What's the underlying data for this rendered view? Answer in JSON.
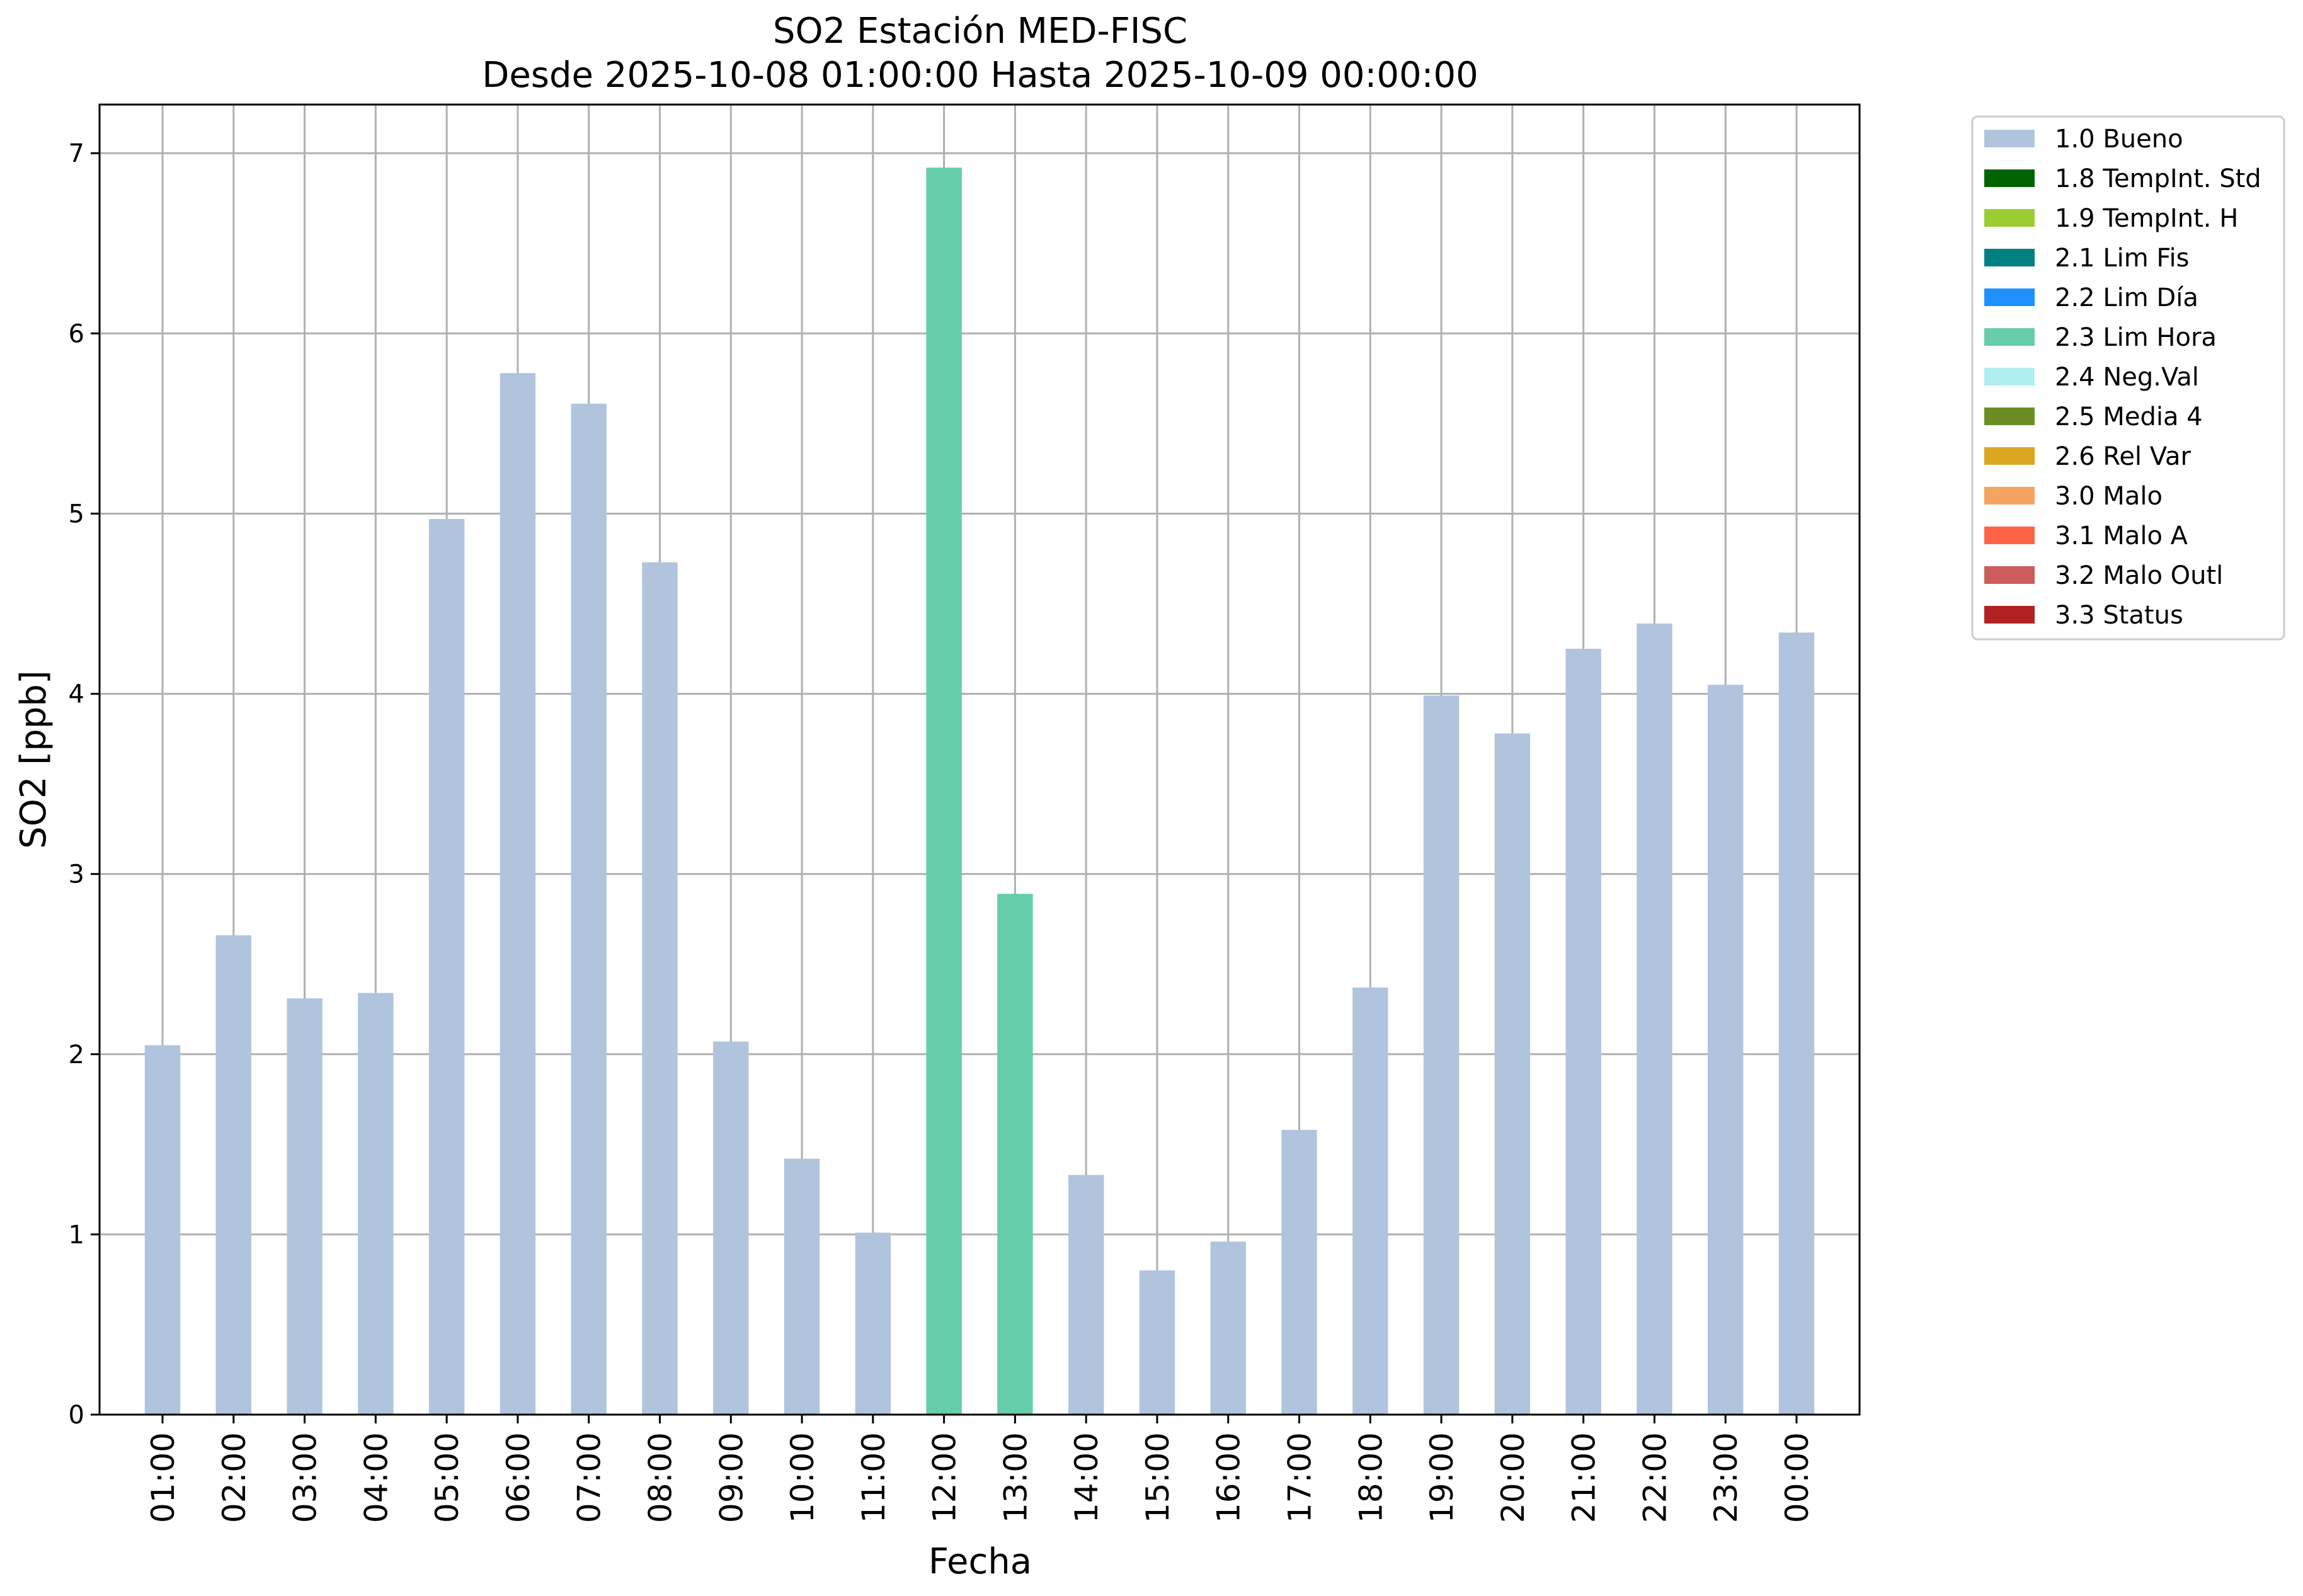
{
  "chart_data": {
    "type": "bar",
    "title": "SO2 Estación MED-FISC",
    "subtitle": "Desde 2025-10-08 01:00:00 Hasta 2025-10-09 00:00:00",
    "xlabel": "Fecha",
    "ylabel": "SO2 [ppb]",
    "ylim": [
      0,
      7.27
    ],
    "yticks": [
      "0",
      "1",
      "2",
      "3",
      "4",
      "5",
      "6",
      "7"
    ],
    "grid": true,
    "legend_position": "outside-top-right",
    "categories": [
      "01:00",
      "02:00",
      "03:00",
      "04:00",
      "05:00",
      "06:00",
      "07:00",
      "08:00",
      "09:00",
      "10:00",
      "11:00",
      "12:00",
      "13:00",
      "14:00",
      "15:00",
      "16:00",
      "17:00",
      "18:00",
      "19:00",
      "20:00",
      "21:00",
      "22:00",
      "23:00",
      "00:00"
    ],
    "values": [
      2.05,
      2.66,
      2.31,
      2.34,
      4.97,
      5.78,
      5.61,
      4.73,
      2.07,
      1.42,
      1.01,
      6.92,
      2.89,
      1.33,
      0.8,
      0.96,
      1.58,
      2.37,
      3.99,
      3.78,
      4.25,
      4.39,
      4.05,
      4.34
    ],
    "flags": [
      "1.0 Bueno",
      "1.0 Bueno",
      "1.0 Bueno",
      "1.0 Bueno",
      "1.0 Bueno",
      "1.0 Bueno",
      "1.0 Bueno",
      "1.0 Bueno",
      "1.0 Bueno",
      "1.0 Bueno",
      "1.0 Bueno",
      "2.3 Lim Hora",
      "2.3 Lim Hora",
      "1.0 Bueno",
      "1.0 Bueno",
      "1.0 Bueno",
      "1.0 Bueno",
      "1.0 Bueno",
      "1.0 Bueno",
      "1.0 Bueno",
      "1.0 Bueno",
      "1.0 Bueno",
      "1.0 Bueno",
      "1.0 Bueno"
    ],
    "legend": [
      {
        "label": "1.0 Bueno",
        "color": "#b0c4de"
      },
      {
        "label": "1.8 TempInt. Std",
        "color": "#006400"
      },
      {
        "label": "1.9 TempInt. H",
        "color": "#9acd32"
      },
      {
        "label": "2.1 Lim Fis",
        "color": "#008080"
      },
      {
        "label": "2.2 Lim Día",
        "color": "#1e90ff"
      },
      {
        "label": "2.3 Lim Hora",
        "color": "#66cdaa"
      },
      {
        "label": "2.4 Neg.Val",
        "color": "#afeeee"
      },
      {
        "label": "2.5 Media 4",
        "color": "#6b8e23"
      },
      {
        "label": "2.6 Rel Var",
        "color": "#daa520"
      },
      {
        "label": "3.0 Malo",
        "color": "#f4a460"
      },
      {
        "label": "3.1 Malo A",
        "color": "#ff6347"
      },
      {
        "label": "3.2 Malo Outl",
        "color": "#cd5c5c"
      },
      {
        "label": "3.3 Status",
        "color": "#b22222"
      }
    ]
  }
}
